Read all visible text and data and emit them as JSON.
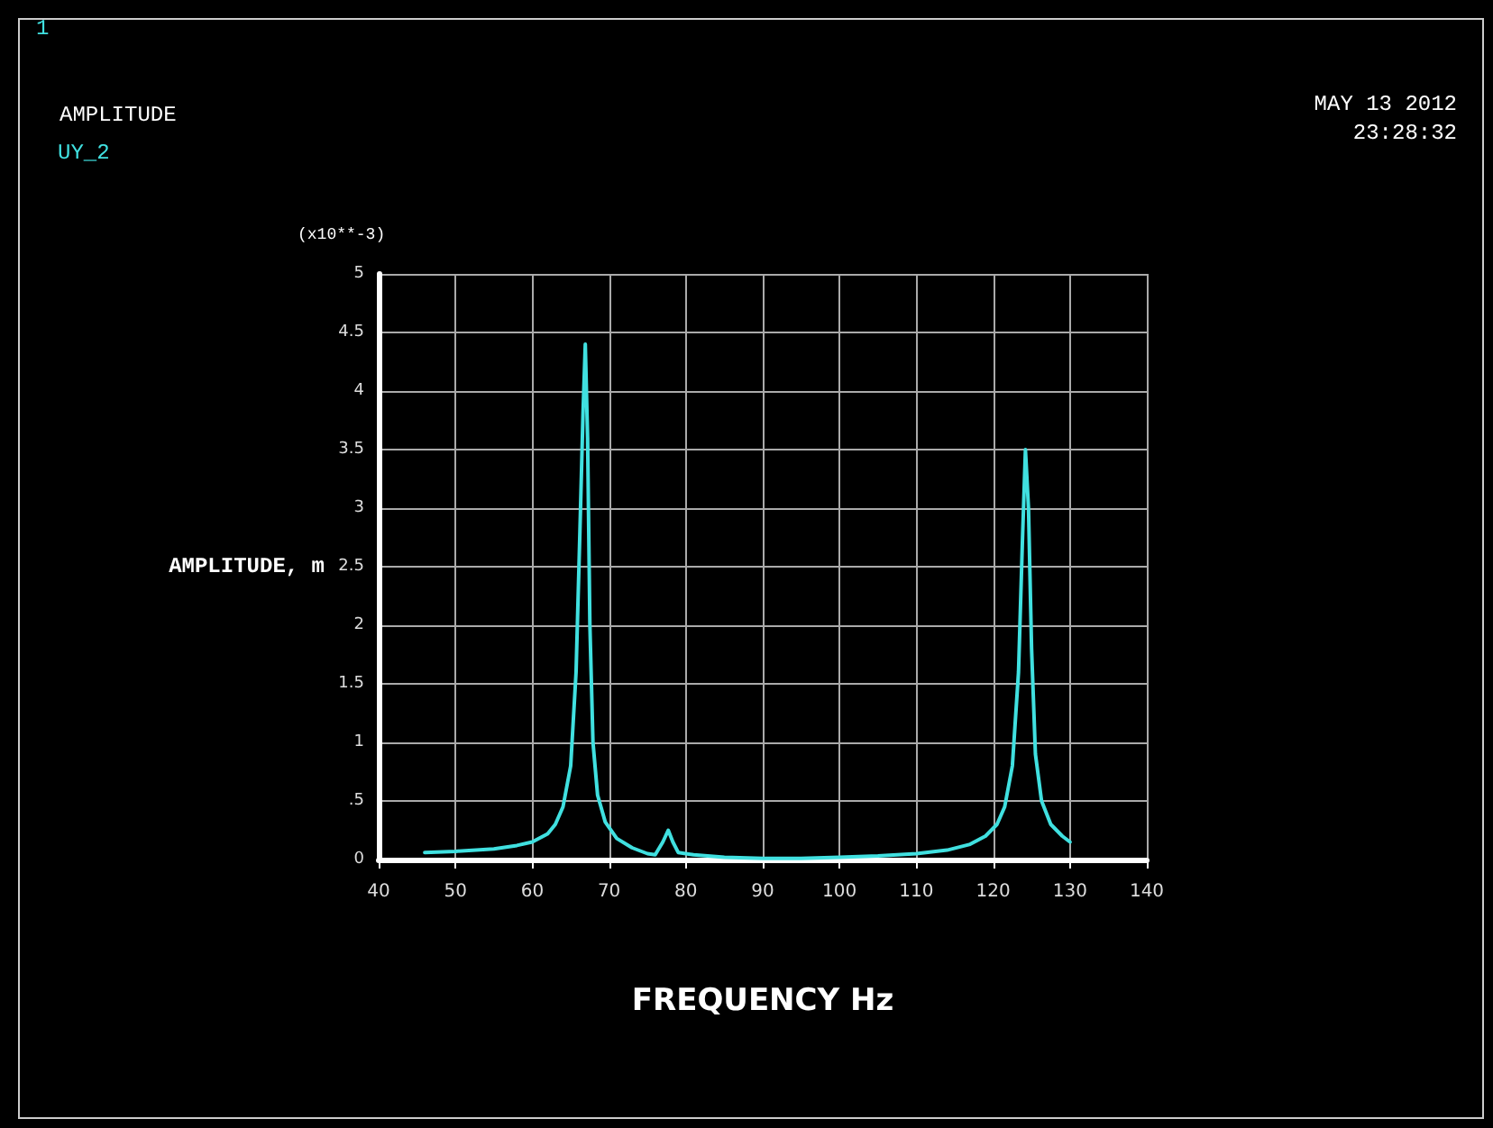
{
  "chart_data": {
    "type": "line",
    "legend_title": "AMPLITUDE",
    "xlabel": "FREQUENCY Hz",
    "ylabel": "AMPLITUDE, m",
    "annotations": [
      "1",
      "MAY 13 2012",
      "23:28:32",
      "(x10**-3)"
    ],
    "xlim": [
      40,
      140
    ],
    "xticks": [
      40,
      50,
      60,
      70,
      80,
      90,
      100,
      110,
      120,
      130,
      140
    ],
    "ylim": [
      0,
      5
    ],
    "yticks": [
      0,
      {
        "value": 0.5,
        "label": ".5"
      },
      1,
      1.5,
      2,
      2.5,
      3,
      3.5,
      4,
      4.5,
      5
    ],
    "grid": true,
    "legend": "top left",
    "marker": "none",
    "line_style": "solid",
    "series": [
      {
        "name": "UY_2",
        "color": "#40e0e0",
        "x": [
          46,
          50,
          55,
          58,
          60,
          62,
          63,
          64,
          65,
          65.7,
          66.2,
          66.6,
          66.9,
          67.2,
          67.5,
          67.9,
          68.5,
          69.5,
          71,
          73,
          75,
          76,
          77,
          77.7,
          78.3,
          79,
          81,
          85,
          90,
          95,
          100,
          105,
          110,
          114,
          117,
          119,
          120.5,
          121.5,
          122.5,
          123.3,
          123.8,
          124.2,
          124.6,
          125,
          125.5,
          126.3,
          127.5,
          129,
          130
        ],
        "values": [
          0.06,
          0.07,
          0.09,
          0.12,
          0.15,
          0.22,
          0.3,
          0.45,
          0.8,
          1.6,
          2.8,
          3.8,
          4.4,
          3.6,
          2.0,
          1.0,
          0.55,
          0.32,
          0.18,
          0.1,
          0.05,
          0.04,
          0.15,
          0.25,
          0.15,
          0.06,
          0.04,
          0.02,
          0.01,
          0.01,
          0.02,
          0.03,
          0.05,
          0.08,
          0.13,
          0.2,
          0.3,
          0.45,
          0.8,
          1.6,
          2.7,
          3.5,
          3.0,
          1.8,
          0.9,
          0.5,
          0.3,
          0.2,
          0.15
        ]
      }
    ]
  }
}
